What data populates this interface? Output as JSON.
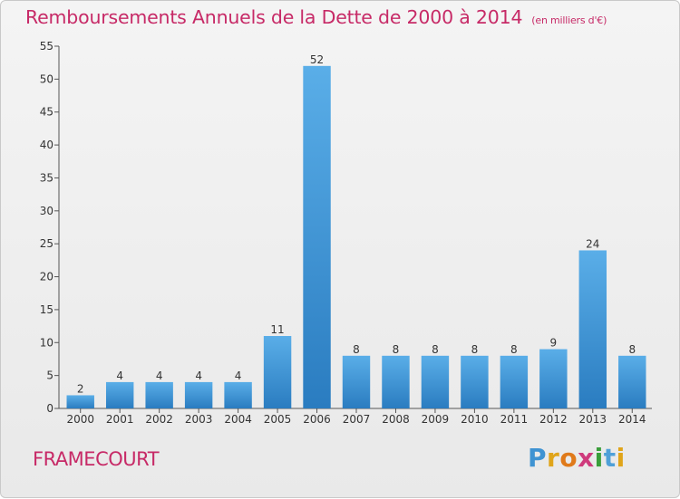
{
  "title": "Remboursements Annuels de la Dette de 2000 à 2014",
  "unit": "(en milliers d'€)",
  "commune": "FRAMECOURT",
  "logo_text": "Proxiti",
  "colors": {
    "title": "#c72a67",
    "bar_light": "#5aaee8",
    "bar_dark": "#2a7cc0"
  },
  "chart_data": {
    "type": "bar",
    "title": "Remboursements Annuels de la Dette de 2000 à 2014",
    "categories": [
      "2000",
      "2001",
      "2002",
      "2003",
      "2004",
      "2005",
      "2006",
      "2007",
      "2008",
      "2009",
      "2010",
      "2011",
      "2012",
      "2013",
      "2014"
    ],
    "values": [
      2,
      4,
      4,
      4,
      4,
      11,
      52,
      8,
      8,
      8,
      8,
      8,
      9,
      24,
      8
    ],
    "ylim": [
      0,
      55
    ],
    "yticks": [
      0,
      5,
      10,
      15,
      20,
      25,
      30,
      35,
      40,
      45,
      50,
      55
    ],
    "grid": false
  }
}
